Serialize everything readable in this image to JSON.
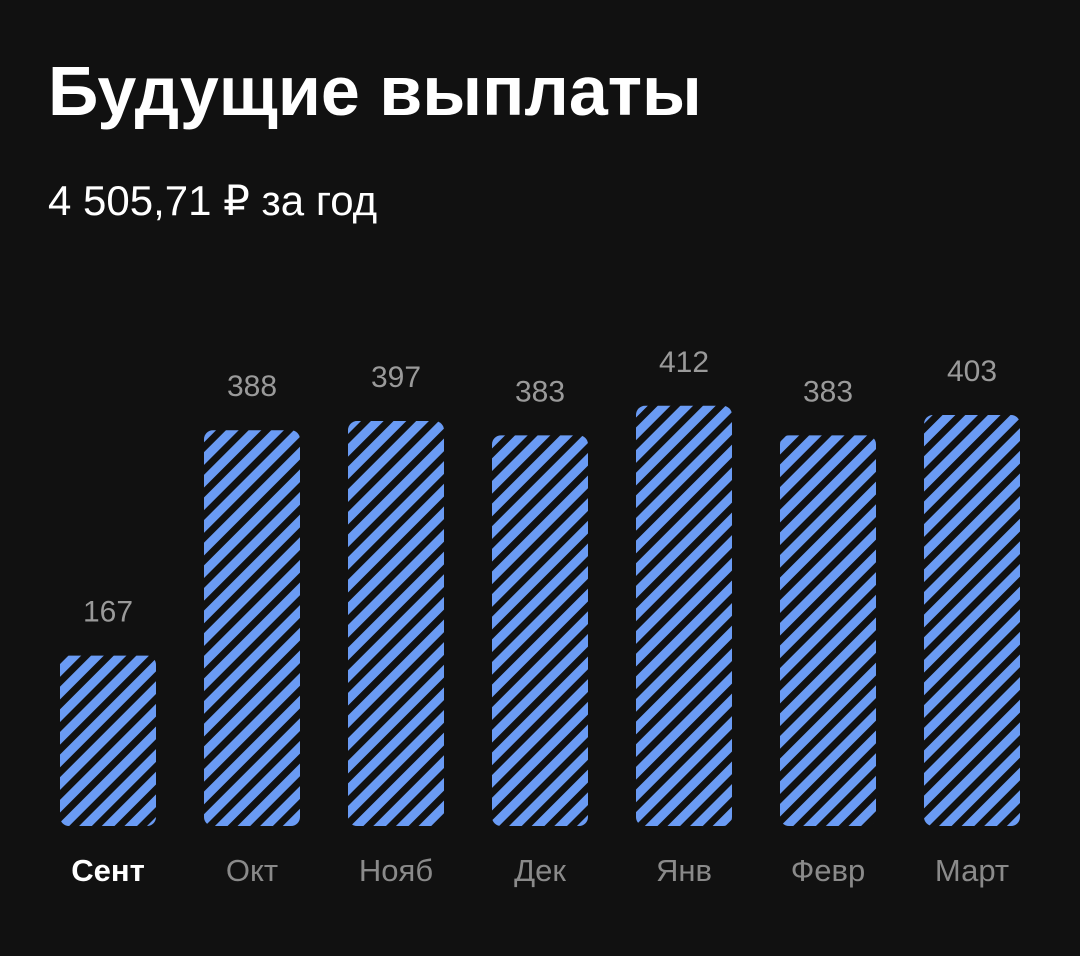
{
  "chart_data": {
    "type": "bar",
    "title": "Будущие выплаты",
    "subtitle": "4 505,71 ₽ за год",
    "categories": [
      "Сент",
      "Окт",
      "Нояб",
      "Дек",
      "Янв",
      "Февр",
      "Март"
    ],
    "values": [
      167,
      388,
      397,
      383,
      412,
      383,
      403
    ],
    "color": "#6a9bf4"
  }
}
